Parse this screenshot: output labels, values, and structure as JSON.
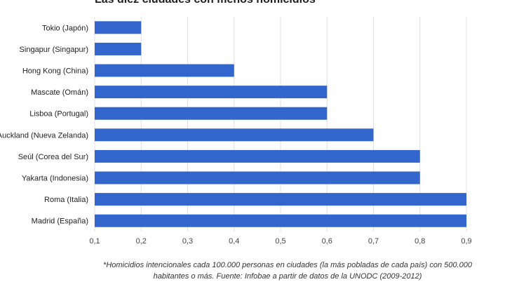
{
  "chart_data": {
    "type": "bar",
    "orientation": "horizontal",
    "title": "Las diez ciudades con menos homicidios*",
    "categories": [
      "Tokio (Japón)",
      "Singapur (Singapur)",
      "Hong Kong (China)",
      "Mascate (Omán)",
      "Lisboa (Portugal)",
      "Auckland (Nueva Zelanda)",
      "Seúl (Corea del Sur)",
      "Yakarta (Indonesia)",
      "Roma (Italia)",
      "Madrid (España)"
    ],
    "values": [
      0.2,
      0.2,
      0.4,
      0.6,
      0.6,
      0.7,
      0.8,
      0.8,
      0.9,
      0.9
    ],
    "xlim": [
      0.1,
      0.9
    ],
    "ticks": [
      0.1,
      0.2,
      0.3,
      0.4,
      0.5,
      0.6,
      0.7,
      0.8,
      0.9
    ],
    "tick_labels": [
      "0,1",
      "0,2",
      "0,3",
      "0,4",
      "0,5",
      "0,6",
      "0,7",
      "0,8",
      "0,9"
    ],
    "grid": true,
    "bar_color": "#3366cc",
    "grid_color": "#e0e0e0",
    "footnote_line1": "*Homicidios intencionales cada 100.000 personas en ciudades (la más pobladas de cada país) con 500.000",
    "footnote_line2": "habitantes o más. Fuente: Infobae a partir de datos de la UNODC (2009-2012)"
  }
}
